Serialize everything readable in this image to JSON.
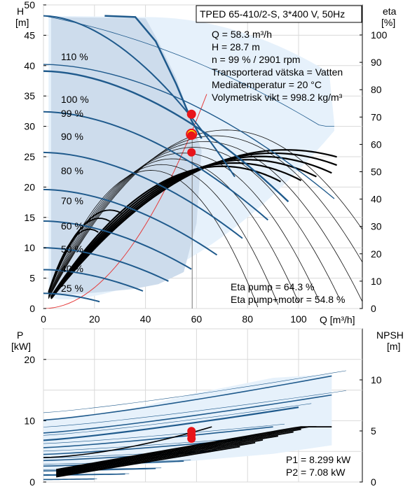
{
  "chart_data": [
    {
      "type": "line",
      "title": "TPED 65-410/2-S, 3*400 V, 50Hz",
      "xlabel": "Q [m³/h]",
      "ylabel_left": "H",
      "ylabel_left_unit": "[m]",
      "ylabel_right": "eta",
      "ylabel_right_unit": "[%]",
      "xlim": [
        0,
        125
      ],
      "ylim_left": [
        0,
        50
      ],
      "ylim_right": [
        0,
        111
      ],
      "x_ticks": [
        "0",
        "20",
        "40",
        "60",
        "80",
        "100"
      ],
      "y_ticks_left": [
        "0",
        "5",
        "10",
        "15",
        "20",
        "25",
        "30",
        "35",
        "40",
        "45",
        "50"
      ],
      "y_ticks_right": [
        "0",
        "10",
        "20",
        "30",
        "40",
        "50",
        "60",
        "70",
        "80",
        "90",
        "100"
      ],
      "grid": true,
      "info_lines": [
        "Q = 58.3 m³/h",
        "H = 28.7 m",
        "n = 99 % / 2901 rpm",
        "Transporterad vätska = Vatten",
        "Mediatemperatur = 20 °C",
        "Volymetrisk vikt = 998.2 kg/m³"
      ],
      "eta_lines": [
        "Eta pump = 64.3 %",
        "Eta pump+motor = 54.8 %"
      ],
      "speed_curves": [
        {
          "name": "110 %",
          "h0": 48.2,
          "qmax": 75
        },
        {
          "name": "100 %",
          "h0": 40.2,
          "qmax": 114
        },
        {
          "name": "99 %",
          "h0": 39.1,
          "qmax": 96
        },
        {
          "name": "90 %",
          "h0": 32.4,
          "qmax": 88
        },
        {
          "name": "80 %",
          "h0": 25.7,
          "qmax": 78
        },
        {
          "name": "70 %",
          "h0": 19.6,
          "qmax": 68
        },
        {
          "name": "60 %",
          "h0": 14.4,
          "qmax": 58
        },
        {
          "name": "50 %",
          "h0": 10.0,
          "qmax": 49
        },
        {
          "name": "40 %",
          "h0": 6.4,
          "qmax": 39
        },
        {
          "name": "25 %",
          "h0": 2.5,
          "qmax": 22
        }
      ],
      "speed_labels_visible": [
        "110 %",
        "100 %",
        "99 %",
        "90 %",
        "80 %",
        "70 %",
        "60 %",
        "5_%",
        "_%",
        "25 %"
      ],
      "operating_point": {
        "Q": 58.3,
        "H": 28.7,
        "eta": 64.3,
        "eta_total": 54.8
      },
      "accent_colors": {
        "curve": "#1f5a8c",
        "fill": "#e6f1fb",
        "fill_dark": "#cddcec",
        "marker": "#e8141a",
        "marker_ring": "#ffe600",
        "system": "#e53b3b"
      }
    },
    {
      "type": "line",
      "ylabel_left": "P",
      "ylabel_left_unit": "[kW]",
      "ylabel_right": "NPSH",
      "ylabel_right_unit": "[m]",
      "xlim": [
        0,
        125
      ],
      "ylim_left": [
        0,
        25
      ],
      "ylim_right": [
        0,
        15
      ],
      "y_ticks_left": [
        "0",
        "10",
        "20"
      ],
      "y_ticks_right": [
        "0",
        "5",
        "10"
      ],
      "grid": true,
      "power_lines": [
        "P1 = 8.299 kW",
        "P2 = 7.08 kW"
      ],
      "operating_point": {
        "Q": 58.3,
        "P1": 8.299,
        "P2": 7.08
      }
    }
  ]
}
